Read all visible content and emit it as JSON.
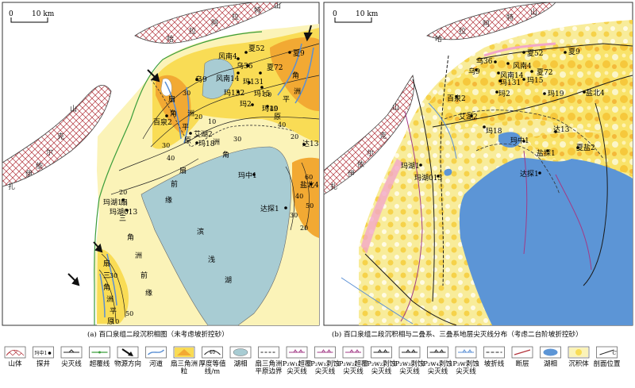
{
  "scale": {
    "zero": "0",
    "dist": "10 km"
  },
  "map_a": {
    "caption": "(a) 百口泉组二段沉积相图（未考虑坡折控砂）",
    "mountain_labels": [
      "哈",
      "拉",
      "阿",
      "拉",
      "特",
      "山",
      "扎",
      "伊",
      "尔",
      "山",
      "依",
      "克"
    ],
    "wells": [
      "夏52",
      "风南4",
      "夏9",
      "乌36",
      "风南14",
      "夏72",
      "乌9",
      "玛131",
      "玛132",
      "玛15",
      "玛2",
      "玛19",
      "百泉2",
      "艾湖2",
      "玛18",
      "达13",
      "玛中1",
      "盐北4",
      "玛湖1",
      "玛湖013",
      "达探1"
    ],
    "facies_labels": [
      "扇",
      "三",
      "角",
      "洲",
      "平",
      "原",
      "前",
      "缘",
      "滨",
      "浅",
      "湖"
    ],
    "contours": [
      "10",
      "20",
      "30",
      "40",
      "50",
      "60"
    ]
  },
  "map_b": {
    "caption": "(b) 百口泉组二段沉积相与二叠系、三叠系地层尖灭线分布（考虑二台阶坡折控砂）",
    "mountain_labels": [
      "哈",
      "拉",
      "阿",
      "特",
      "山",
      "扎",
      "伊",
      "尔",
      "山",
      "依",
      "克"
    ],
    "wells": [
      "夏52",
      "夏9",
      "乌36",
      "风南4",
      "乌9",
      "风南14",
      "夏72",
      "玛131",
      "玛15",
      "玛2",
      "玛19",
      "盐北4",
      "百泉2",
      "艾湖2",
      "玛18",
      "达13",
      "玛中1",
      "盐探1",
      "夏盐2",
      "玛湖1",
      "玛湖013",
      "达探1"
    ]
  },
  "legend": [
    {
      "icon": "mountain-icon",
      "label": "山体"
    },
    {
      "icon": "well-icon",
      "label": "探井",
      "sample": "玛中1"
    },
    {
      "icon": "pinchout-line-icon",
      "label": "尖灭线"
    },
    {
      "icon": "overlap-line-icon",
      "label": "超覆线"
    },
    {
      "icon": "source-arrow-icon",
      "label": "物源方向"
    },
    {
      "icon": "river-icon",
      "label": "河道"
    },
    {
      "icon": "fan-delta-icon",
      "label": "扇三角洲粒"
    },
    {
      "icon": "thickness-icon",
      "label": "厚度等值线/m",
      "sample": "40"
    },
    {
      "icon": "lake-facies-icon",
      "label": "湖相"
    },
    {
      "icon": "plain-boundary-icon",
      "label": "扇三角洲平原边界"
    },
    {
      "icon": "p2w1-overlap-icon",
      "label": "P₂w₁超覆尖灭线"
    },
    {
      "icon": "p2w1-erosion-icon",
      "label": "P₂w₁剥蚀尖灭线"
    },
    {
      "icon": "p2w2-overlap-icon",
      "label": "P₂w₂超覆尖灭线"
    },
    {
      "icon": "p2w2-erosion-icon",
      "label": "P₂w₂剥蚀尖灭线"
    },
    {
      "icon": "p2w3-erosion-icon",
      "label": "P₂w₃剥蚀尖灭线"
    },
    {
      "icon": "p2w4-erosion-icon",
      "label": "P₂w₄剥蚀尖灭线"
    },
    {
      "icon": "p3w-erosion-icon",
      "label": "P₃w剥蚀尖灭线"
    },
    {
      "icon": "slope-break-icon",
      "label": "坡折线"
    },
    {
      "icon": "fault-icon",
      "label": "断层"
    },
    {
      "icon": "lake-icon",
      "label": "湖相"
    },
    {
      "icon": "sediment-icon",
      "label": "沉积体"
    },
    {
      "icon": "section-icon",
      "label": "剖面位置"
    }
  ],
  "colors": {
    "yellow_light": "#fbf3b8",
    "yellow": "#f9dc55",
    "orange": "#f2a933",
    "lake": "#a8ccd3",
    "lake_b": "#5c95d6",
    "pink": "#f2a7c8",
    "blue_line": "#5a8fd4",
    "purple": "#a23a86"
  }
}
